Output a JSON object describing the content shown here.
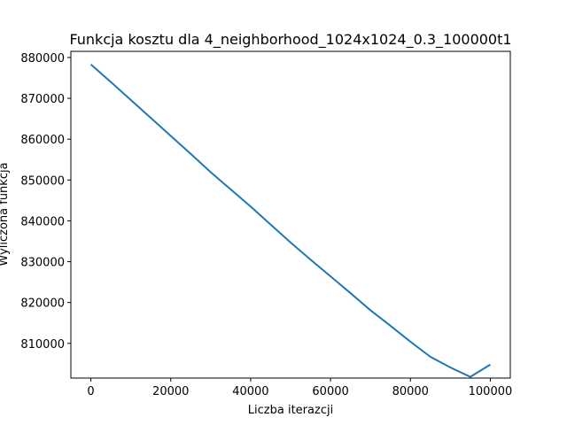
{
  "chart_data": {
    "type": "line",
    "title": "Funkcja kosztu dla 4_neighborhood_1024x1024_0.3_100000t1",
    "xlabel": "Liczba iterazcji",
    "ylabel": "Wyliczona funkcja",
    "xlim": [
      -5000,
      105000
    ],
    "ylim": [
      801500,
      881500
    ],
    "xticks": [
      0,
      20000,
      40000,
      60000,
      80000,
      100000
    ],
    "yticks": [
      810000,
      820000,
      830000,
      840000,
      850000,
      860000,
      870000,
      880000
    ],
    "grid": false,
    "legend": "none",
    "series": [
      {
        "name": "",
        "color": "#1f77b4",
        "x": [
          0,
          5000,
          10000,
          15000,
          20000,
          25000,
          30000,
          35000,
          40000,
          45000,
          50000,
          55000,
          60000,
          65000,
          70000,
          75000,
          80000,
          85000,
          90000,
          95000,
          100000
        ],
        "y": [
          878300,
          874000,
          869600,
          865200,
          860800,
          856400,
          851900,
          847700,
          843500,
          839100,
          834700,
          830500,
          826400,
          822300,
          818100,
          814300,
          810400,
          806700,
          804100,
          801800,
          804800
        ]
      }
    ]
  }
}
